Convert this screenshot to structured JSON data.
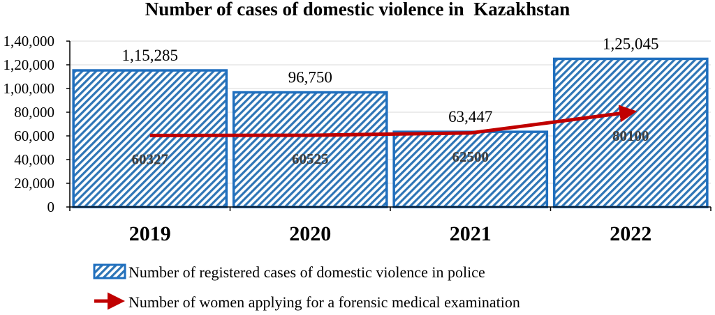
{
  "chart_data": {
    "type": "bar",
    "title": "Number of cases of domestic violence in  Kazakhstan",
    "categories": [
      "2019",
      "2020",
      "2021",
      "2022"
    ],
    "series": [
      {
        "name": "Number of registered cases of domestic violence in police",
        "type": "bar",
        "values": [
          115285,
          96750,
          63447,
          125045
        ],
        "labels": [
          "1,15,285",
          "96,750",
          "63,447",
          "1,25,045"
        ],
        "color": "#2e75b6",
        "pattern": "diagonal-stripes"
      },
      {
        "name": "Number of women applying for a forensic medical examination",
        "type": "line",
        "values": [
          60327,
          60525,
          62500,
          80100
        ],
        "labels": [
          "60327",
          "60525",
          "62500",
          "80100"
        ],
        "color": "#c00000",
        "marker": "arrow"
      }
    ],
    "xlabel": "",
    "ylabel": "",
    "ylim": [
      0,
      140000
    ],
    "yticks": [
      {
        "value": 0,
        "label": "0"
      },
      {
        "value": 20000,
        "label": "20,000"
      },
      {
        "value": 40000,
        "label": "40,000"
      },
      {
        "value": 60000,
        "label": "60,000"
      },
      {
        "value": 80000,
        "label": "80,000"
      },
      {
        "value": 100000,
        "label": "1,00,000"
      },
      {
        "value": 120000,
        "label": "1,20,000"
      },
      {
        "value": 140000,
        "label": "1,40,000"
      }
    ],
    "grid": true,
    "legend": "bottom"
  }
}
